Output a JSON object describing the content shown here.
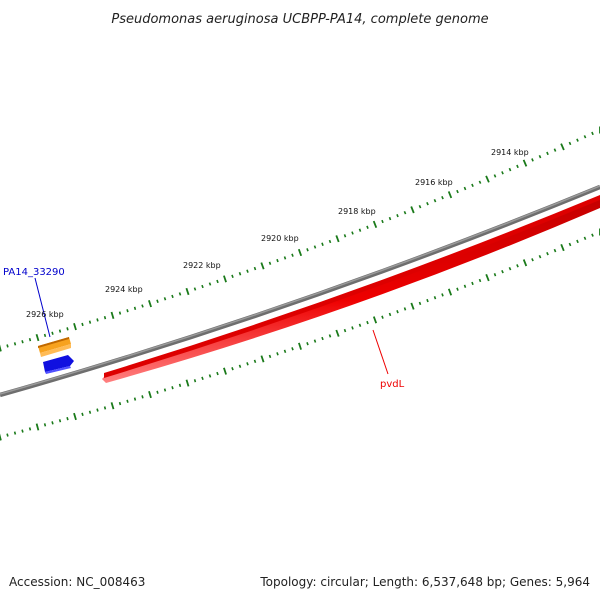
{
  "title": "Pseudomonas aeruginosa UCBPP-PA14, complete genome",
  "footer": {
    "accession": "Accession: NC_008463",
    "summary": "Topology: circular; Length: 6,537,648 bp; Genes: 5,964"
  },
  "tick_labels": [
    "2914 kbp",
    "2916 kbp",
    "2918 kbp",
    "2920 kbp",
    "2922 kbp",
    "2924 kbp",
    "2926 kbp"
  ],
  "gene_labels": {
    "pvdL": "pvdL",
    "pa14": "PA14_33290"
  },
  "colors": {
    "backbone": "#777777",
    "ticks": "#1a7a1a",
    "pvdL": "#ee0000",
    "pa14_label": "#0000cc",
    "orange_feature": "#f08c00",
    "blue_feature": "#1010e0"
  }
}
